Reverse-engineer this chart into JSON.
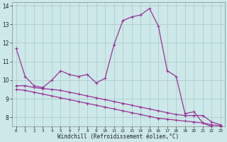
{
  "xlabel": "Windchill (Refroidissement éolien,°C)",
  "x_values": [
    0,
    1,
    2,
    3,
    4,
    5,
    6,
    7,
    8,
    9,
    10,
    11,
    12,
    13,
    14,
    15,
    16,
    17,
    18,
    19,
    20,
    21,
    22,
    23
  ],
  "line1_y": [
    11.7,
    10.2,
    9.7,
    9.6,
    10.0,
    10.5,
    10.3,
    10.2,
    10.3,
    9.85,
    10.1,
    11.9,
    13.2,
    13.4,
    13.5,
    13.85,
    12.9,
    10.5,
    10.2,
    8.2,
    8.3,
    7.7,
    7.5,
    7.5
  ],
  "line2_y": [
    9.7,
    9.7,
    9.6,
    9.55,
    9.5,
    9.45,
    9.35,
    9.25,
    9.15,
    9.05,
    8.95,
    8.85,
    8.75,
    8.65,
    8.55,
    8.45,
    8.35,
    8.25,
    8.15,
    8.1,
    8.1,
    8.1,
    7.75,
    7.6
  ],
  "line3_y": [
    9.5,
    9.45,
    9.35,
    9.25,
    9.15,
    9.05,
    8.95,
    8.85,
    8.75,
    8.65,
    8.55,
    8.45,
    8.35,
    8.25,
    8.15,
    8.05,
    7.95,
    7.9,
    7.85,
    7.8,
    7.75,
    7.7,
    7.6,
    7.55
  ],
  "line_color": "#993399",
  "bg_color": "#cce8e8",
  "grid_color": "#aac8c8",
  "ylim": [
    7.5,
    14.2
  ],
  "yticks": [
    8,
    9,
    10,
    11,
    12,
    13,
    14
  ],
  "xlim": [
    -0.5,
    23.5
  ],
  "linewidth": 0.9,
  "markersize": 2.5
}
